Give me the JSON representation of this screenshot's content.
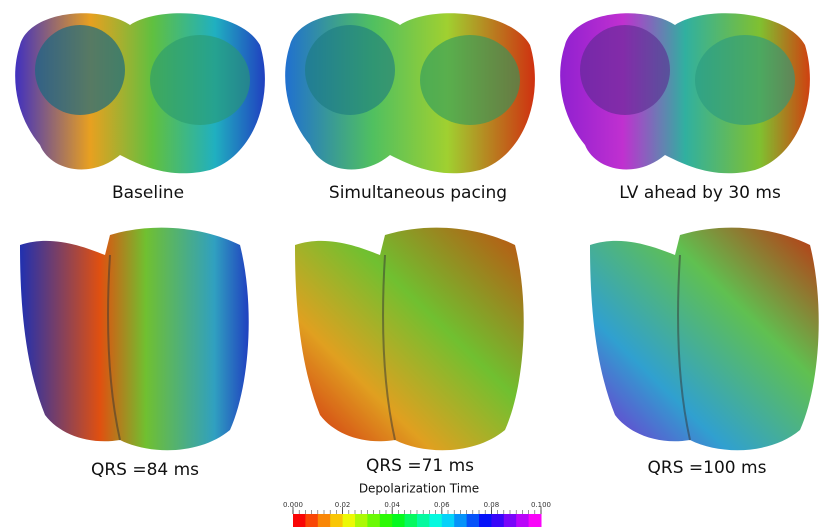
{
  "panels": [
    {
      "label": "Baseline"
    },
    {
      "label": "Simultaneous pacing"
    },
    {
      "label": "LV ahead by 30 ms"
    },
    {
      "label": "QRS =84 ms"
    },
    {
      "label": "QRS =71 ms"
    },
    {
      "label": "QRS =100 ms"
    }
  ],
  "colorbar": {
    "title": "Depolarization Time",
    "lim": [
      0,
      0.1
    ],
    "ticks": [
      {
        "value": 0,
        "label": "0.000"
      },
      0.02,
      0.04,
      0.06,
      0.08,
      {
        "value": 0.1,
        "label": "0.100"
      }
    ]
  }
}
